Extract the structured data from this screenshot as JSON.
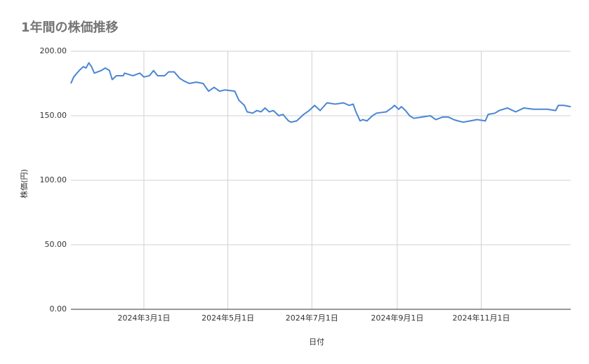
{
  "chart_data": {
    "type": "line",
    "title": "1年間の株価推移",
    "x_label": "日付",
    "y_label": "株価(円)",
    "x": [
      "2024-01-08",
      "2024-01-10",
      "2024-01-14",
      "2024-01-17",
      "2024-01-19",
      "2024-01-21",
      "2024-01-23",
      "2024-01-25",
      "2024-01-30",
      "2024-02-02",
      "2024-02-05",
      "2024-02-07",
      "2024-02-10",
      "2024-02-15",
      "2024-02-16",
      "2024-02-22",
      "2024-02-27",
      "2024-03-01",
      "2024-03-05",
      "2024-03-08",
      "2024-03-11",
      "2024-03-16",
      "2024-03-19",
      "2024-03-23",
      "2024-03-27",
      "2024-03-30",
      "2024-04-03",
      "2024-04-08",
      "2024-04-13",
      "2024-04-17",
      "2024-04-21",
      "2024-04-25",
      "2024-04-29",
      "2024-05-06",
      "2024-05-09",
      "2024-05-13",
      "2024-05-15",
      "2024-05-19",
      "2024-05-22",
      "2024-05-25",
      "2024-05-28",
      "2024-05-31",
      "2024-06-03",
      "2024-06-07",
      "2024-06-10",
      "2024-06-14",
      "2024-06-16",
      "2024-06-20",
      "2024-06-25",
      "2024-06-29",
      "2024-07-03",
      "2024-07-07",
      "2024-07-12",
      "2024-07-18",
      "2024-07-24",
      "2024-07-28",
      "2024-07-31",
      "2024-08-02",
      "2024-08-05",
      "2024-08-07",
      "2024-08-10",
      "2024-08-14",
      "2024-08-17",
      "2024-08-24",
      "2024-08-28",
      "2024-08-30",
      "2024-09-02",
      "2024-09-04",
      "2024-09-07",
      "2024-09-10",
      "2024-09-13",
      "2024-09-19",
      "2024-09-25",
      "2024-09-29",
      "2024-10-04",
      "2024-10-08",
      "2024-10-12",
      "2024-10-15",
      "2024-10-19",
      "2024-10-24",
      "2024-10-29",
      "2024-11-04",
      "2024-11-06",
      "2024-11-11",
      "2024-11-14",
      "2024-11-20",
      "2024-11-26",
      "2024-12-02",
      "2024-12-09",
      "2024-12-19",
      "2024-12-25",
      "2024-12-27",
      "2024-12-31",
      "2025-01-05"
    ],
    "series": [
      {
        "name": "株価",
        "color": "#4a86d4",
        "values": [
          175,
          180,
          185,
          188,
          187,
          191,
          188,
          183,
          185,
          187,
          185,
          178,
          181,
          181,
          183,
          181,
          183,
          180,
          181,
          185,
          181,
          181,
          184,
          184,
          179,
          177,
          175,
          176,
          175,
          169,
          172,
          169,
          170,
          169,
          162,
          158,
          153,
          152,
          154,
          153,
          156,
          153,
          154,
          150,
          151,
          146,
          145,
          146,
          151,
          154,
          158,
          154,
          160,
          159,
          160,
          158,
          159,
          153,
          146,
          147,
          146,
          150,
          152,
          153,
          156,
          158,
          155,
          157,
          154,
          150,
          148,
          149,
          150,
          147,
          149,
          149,
          147,
          146,
          145,
          146,
          147,
          146,
          151,
          152,
          154,
          156,
          153,
          156,
          155,
          155,
          154,
          158,
          158,
          157
        ]
      }
    ],
    "xlim": [
      "2024-01-08",
      "2025-01-05"
    ],
    "xticks": [
      {
        "value": "2024-03-01",
        "label": "2024年3月1日"
      },
      {
        "value": "2024-05-01",
        "label": "2024年5月1日"
      },
      {
        "value": "2024-07-01",
        "label": "2024年7月1日"
      },
      {
        "value": "2024-09-01",
        "label": "2024年9月1日"
      },
      {
        "value": "2024-11-01",
        "label": "2024年11月1日"
      }
    ],
    "ylim": [
      0,
      200
    ],
    "yticks": [
      {
        "value": 0,
        "label": "0.00"
      },
      {
        "value": 50,
        "label": "50.00"
      },
      {
        "value": 100,
        "label": "100.00"
      },
      {
        "value": 150,
        "label": "150.00"
      },
      {
        "value": 200,
        "label": "200.00"
      }
    ],
    "grid": true
  }
}
